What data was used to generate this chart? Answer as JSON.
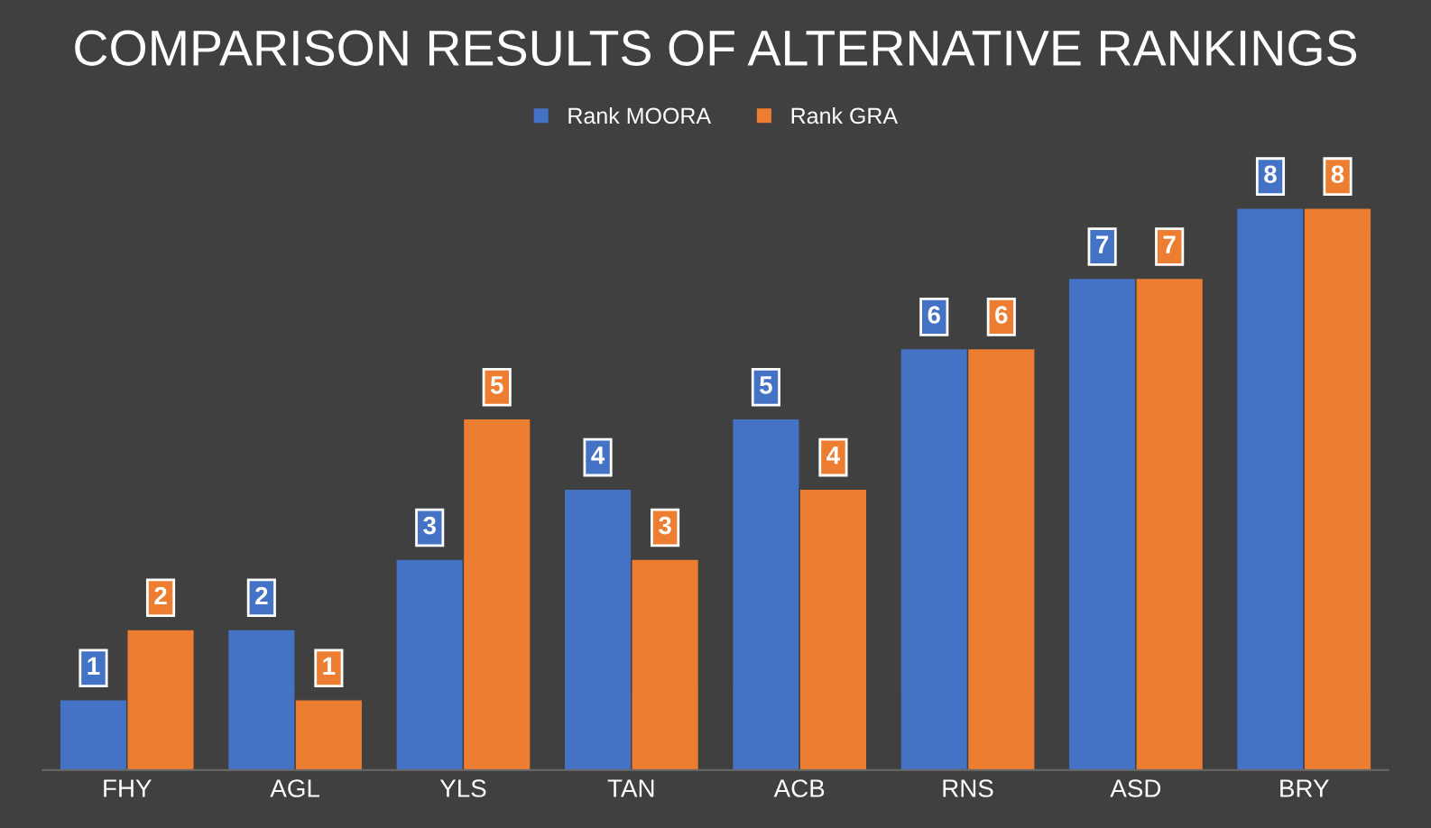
{
  "chart_data": {
    "type": "bar",
    "title": "COMPARISON RESULTS OF ALTERNATIVE RANKINGS",
    "categories": [
      "FHY",
      "AGL",
      "YLS",
      "TAN",
      "ACB",
      "RNS",
      "ASD",
      "BRY"
    ],
    "series": [
      {
        "name": "Rank MOORA",
        "color": "#4472c4",
        "values": [
          1,
          2,
          3,
          4,
          5,
          6,
          7,
          8
        ]
      },
      {
        "name": "Rank GRA",
        "color": "#ed7d31",
        "values": [
          2,
          1,
          5,
          3,
          4,
          6,
          7,
          8
        ]
      }
    ],
    "data_labels": true,
    "legend": "top",
    "grid": false
  }
}
